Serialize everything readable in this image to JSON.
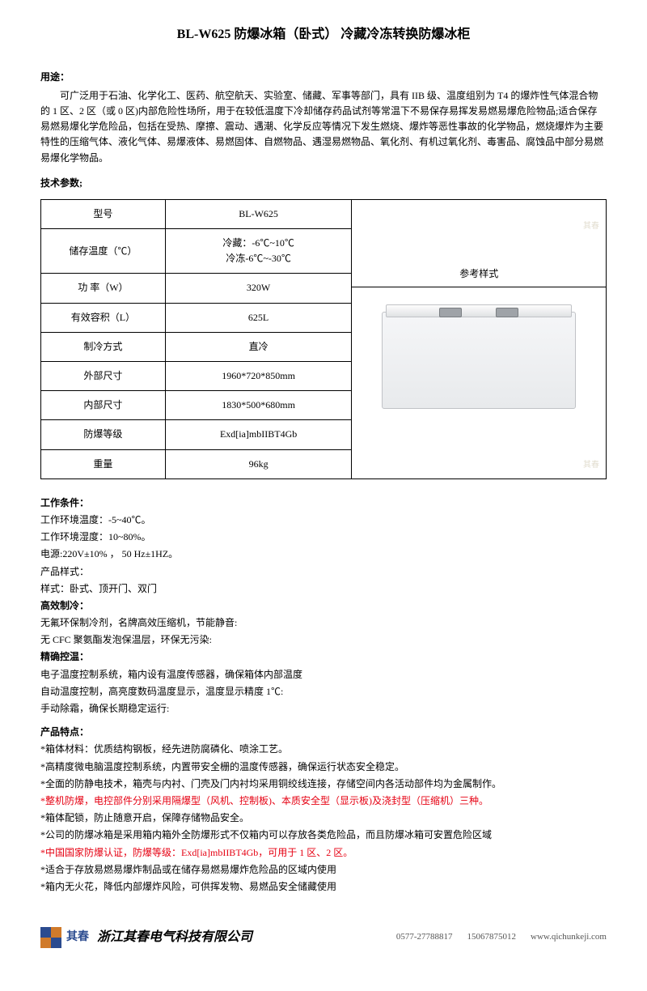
{
  "title": "BL-W625 防爆冰箱（卧式）  冷藏冷冻转换防爆冰柜",
  "sections": {
    "usage_h": "用途：",
    "usage_text": "可广泛用于石油、化学化工、医药、航空航天、实验室、储藏、军事等部门，具有 IIB 级、温度组别为 T4 的爆炸性气体混合物的 1 区、2 区（或 0 区)内部危险性场所，用于在较低温度下冷却储存药品试剂等常温下不易保存易挥发易燃易爆危险物品;适合保存易燃易爆化学危险品，包括在受热、摩擦、震动、遇潮、化学反应等情况下发生燃烧、爆炸等恶性事故的化学物品，燃烧爆炸为主要特性的压缩气体、液化气体、易爆液体、易燃固体、自燃物品、遇湿易燃物品、氧化剂、有机过氧化剂、毒害品、腐蚀品中部分易燃易爆化学物品。",
    "spec_h": "技术参数;"
  },
  "table": {
    "ref_style": "参考样式",
    "rows": [
      {
        "label": "型号",
        "value": "BL-W625"
      },
      {
        "label": "储存温度（℃）",
        "value": "冷藏：-6℃~10℃\n冷冻-6℃~-30℃"
      },
      {
        "label": "功 率（W）",
        "value": "320W"
      },
      {
        "label": "有效容积（L）",
        "value": "625L"
      },
      {
        "label": "制冷方式",
        "value": "直冷"
      },
      {
        "label": "外部尺寸",
        "value": "1960*720*850mm"
      },
      {
        "label": "内部尺寸",
        "value": "1830*500*680mm"
      },
      {
        "label": "防爆等级",
        "value": "Exd[ia]mbIIBT4Gb"
      },
      {
        "label": "重量",
        "value": "96kg"
      }
    ],
    "watermark": "其春"
  },
  "work": {
    "h": "工作条件：",
    "lines": [
      "工作环境温度：-5~40℃。",
      "工作环境湿度：10~80%。",
      "电源:220V±10% ， 50 Hz±1HZ。",
      "产品样式：",
      "样式：卧式、顶开门、双门"
    ],
    "h2": "高效制冷：",
    "lines2": [
      "无氟环保制冷剂，名牌高效压缩机，节能静音:",
      "无 CFC 聚氨酯发泡保温层，环保无污染:"
    ],
    "h3": "精确控温：",
    "lines3": [
      "电子温度控制系统，箱内设有温度传感器，确保箱体内部温度",
      "自动温度控制，高亮度数码温度显示，温度显示精度 1℃:",
      "手动除霜，确保长期稳定运行:"
    ]
  },
  "features": {
    "h": "产品特点：",
    "items": [
      {
        "t": "*箱体材料：优质结构钢板，经先进防腐磷化、喷涂工艺。",
        "red": false
      },
      {
        "t": "*高精度微电脑温度控制系统，内置带安全栅的温度传感器，确保运行状态安全稳定。",
        "red": false
      },
      {
        "t": "*全面的防静电技术，箱壳与内衬、门壳及门内衬均采用铜绞线连接，存储空间内各活动部件均为金属制作。",
        "red": false
      },
      {
        "t": "*整机防爆，电控部件分别采用隔爆型（风机、控制板)、本质安全型（显示板)及浇封型（压缩机）三种。",
        "red": true
      },
      {
        "t": "*箱体配锁，防止随意开启，保障存储物品安全。",
        "red": false
      },
      {
        "t": "*公司的防爆冰箱是采用箱内箱外全防爆形式不仅箱内可以存放各类危险品，而且防爆冰箱可安置危险区域",
        "red": false
      },
      {
        "t": "*中国国家防爆认证，防爆等级：Exd[ia]mbIIBT4Gb，可用于 1 区、2 区。",
        "red": true
      },
      {
        "t": "*适合于存放易燃易爆炸制品或在储存易燃易爆炸危险品的区域内使用",
        "red": false
      },
      {
        "t": "*箱内无火花，降低内部爆炸风险，可供挥发物、易燃品安全储藏使用",
        "red": false
      }
    ]
  },
  "footer": {
    "brand": "其春",
    "company": "浙江其春电气科技有限公司",
    "tel1": "0577-27788817",
    "tel2": "15067875012",
    "web": "www.qichunkeji.com"
  }
}
